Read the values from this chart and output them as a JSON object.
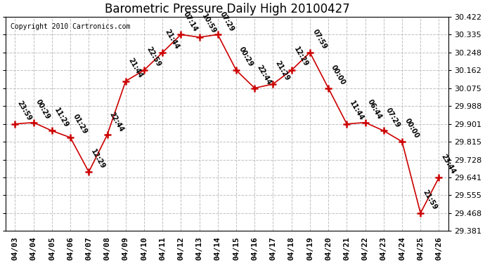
{
  "title": "Barometric Pressure Daily High 20100427",
  "copyright": "Copyright 2010 Cartronics.com",
  "dates": [
    "04/03",
    "04/04",
    "04/05",
    "04/06",
    "04/07",
    "04/08",
    "04/09",
    "04/10",
    "04/11",
    "04/12",
    "04/13",
    "04/14",
    "04/15",
    "04/16",
    "04/17",
    "04/18",
    "04/19",
    "04/20",
    "04/21",
    "04/22",
    "04/23",
    "04/24",
    "04/25",
    "04/26"
  ],
  "values": [
    29.901,
    29.908,
    29.868,
    29.835,
    29.668,
    29.848,
    30.109,
    30.162,
    30.248,
    30.335,
    30.322,
    30.335,
    30.162,
    30.075,
    30.095,
    30.162,
    30.248,
    30.075,
    29.901,
    29.908,
    29.868,
    29.815,
    29.468,
    29.641
  ],
  "time_labels": [
    "23:59",
    "00:29",
    "11:29",
    "01:29",
    "12:29",
    "22:44",
    "21:44",
    "22:59",
    "21:44",
    "07:14",
    "10:59",
    "07:29",
    "00:29",
    "22:44",
    "21:29",
    "12:29",
    "07:59",
    "00:00",
    "11:44",
    "06:44",
    "07:29",
    "00:00",
    "21:59",
    "23:44"
  ],
  "ylim_min": 29.381,
  "ylim_max": 30.422,
  "yticks": [
    30.422,
    30.335,
    30.248,
    30.162,
    30.075,
    29.988,
    29.901,
    29.815,
    29.728,
    29.641,
    29.555,
    29.468,
    29.381
  ],
  "line_color": "#cc0000",
  "marker_color": "#cc0000",
  "bg_color": "#ffffff",
  "grid_color": "#c0c0c0",
  "title_fontsize": 12,
  "label_fontsize": 7,
  "tick_fontsize": 8,
  "copyright_fontsize": 7
}
